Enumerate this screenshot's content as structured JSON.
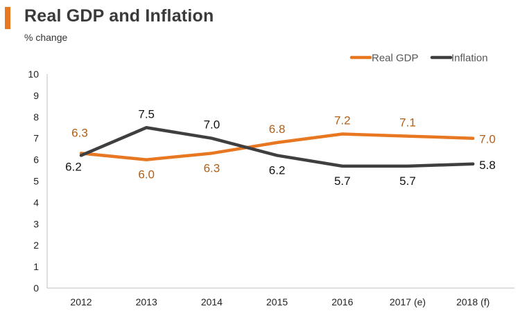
{
  "header": {
    "title": "Real GDP and Inflation",
    "subtitle": "% change"
  },
  "colors": {
    "accent": "#e87722",
    "gdp": "#e87722",
    "gdp_label": "#b35d12",
    "inflation": "#3f3f3f",
    "inflation_label": "#111111"
  },
  "chart_data": {
    "type": "line",
    "title": "Real GDP and Inflation",
    "ylabel": "% change",
    "xlabel": "",
    "categories": [
      "2012",
      "2013",
      "2014",
      "2015",
      "2016",
      "2017 (e)",
      "2018 (f)"
    ],
    "ylim": [
      0,
      10
    ],
    "yticks": [
      "0",
      "1",
      "2",
      "3",
      "4",
      "5",
      "6",
      "7",
      "8",
      "9",
      "10"
    ],
    "legend_position": "top-right",
    "series": [
      {
        "name": "Real GDP",
        "values": [
          6.3,
          6.0,
          6.3,
          6.8,
          7.2,
          7.1,
          7.0
        ],
        "labels": [
          "6.3",
          "6.0",
          "6.3",
          "6.8",
          "7.2",
          "7.1",
          "7.0"
        ]
      },
      {
        "name": "Inflation",
        "values": [
          6.2,
          7.5,
          7.0,
          6.2,
          5.7,
          5.7,
          5.8
        ],
        "labels": [
          "6.2",
          "7.5",
          "7.0",
          "6.2",
          "5.7",
          "5.7",
          "5.8"
        ]
      }
    ]
  }
}
